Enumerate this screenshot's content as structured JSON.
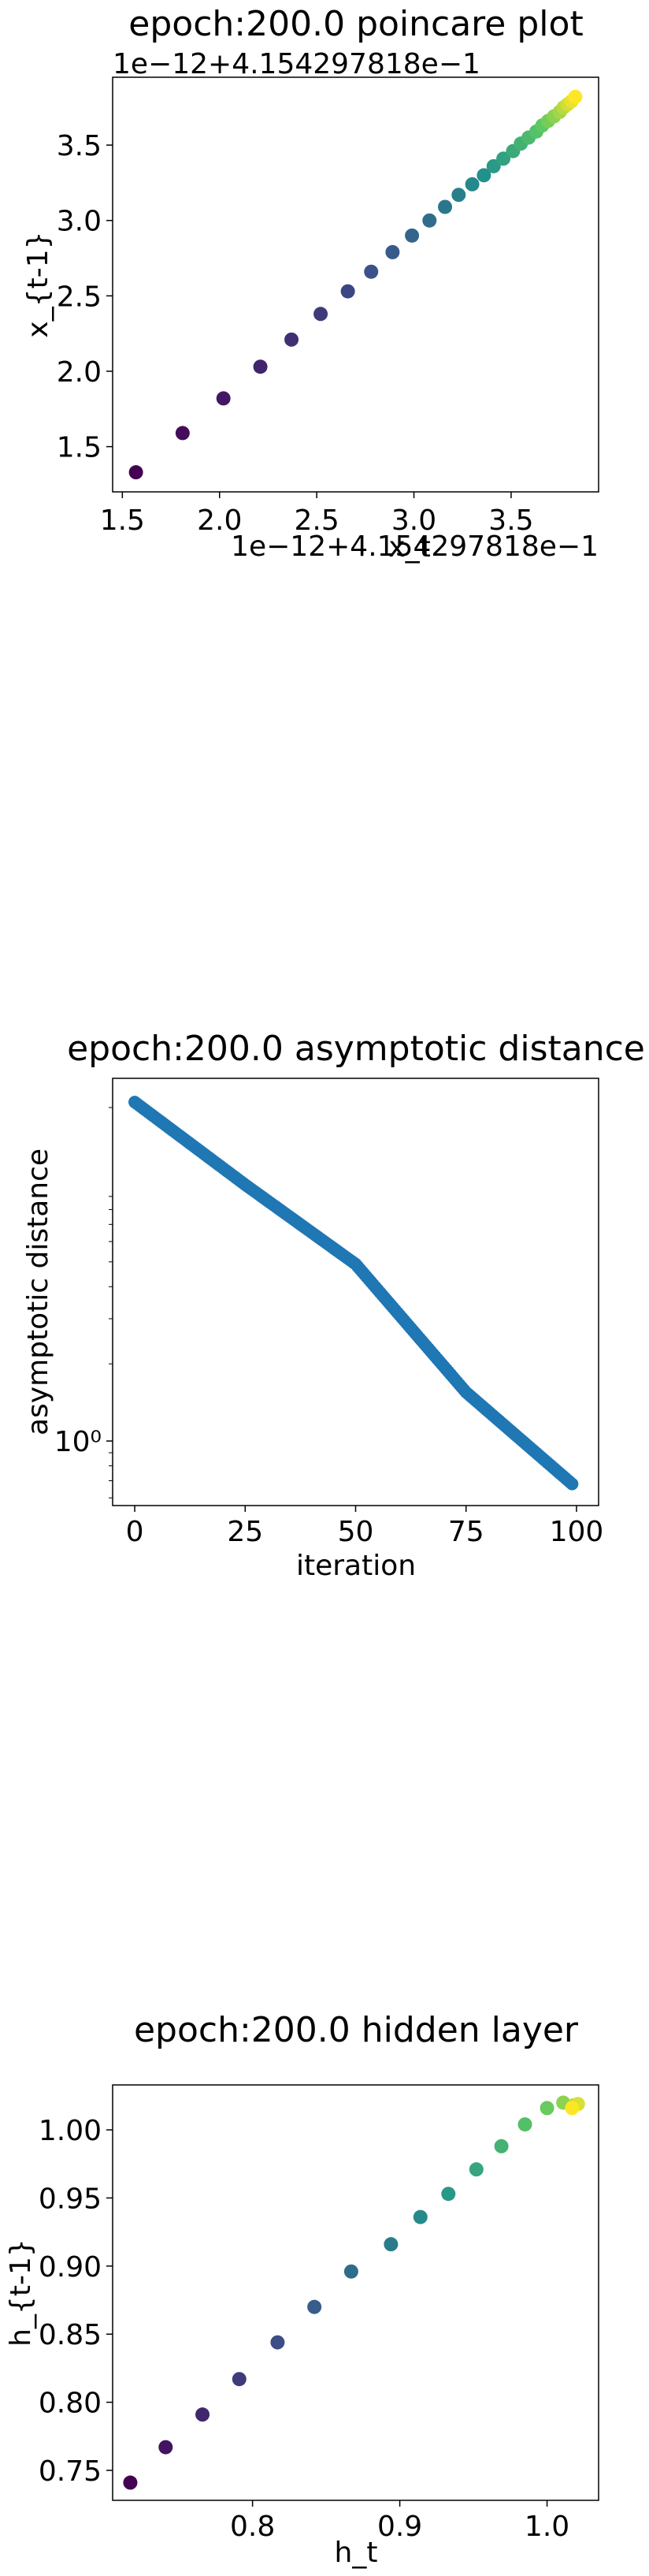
{
  "charts": [
    {
      "type": "scatter",
      "title": "epoch:200.0 poincare plot",
      "xlabel": "x_t",
      "ylabel": "x_{t-1}",
      "y_offset_text": "1e−12+4.154297818e−1",
      "x_offset_text": "1e−12+4.154297818e−1",
      "xlim": [
        1.45,
        3.95
      ],
      "ylim": [
        1.2,
        3.95
      ],
      "xticks": [
        "1.5",
        "2.0",
        "2.5",
        "3.0",
        "3.5"
      ],
      "yticks": [
        "1.5",
        "2.0",
        "2.5",
        "3.0",
        "3.5"
      ],
      "colormap": "viridis",
      "x": [
        1.57,
        1.81,
        2.02,
        2.21,
        2.37,
        2.52,
        2.66,
        2.78,
        2.89,
        2.99,
        3.08,
        3.16,
        3.23,
        3.3,
        3.36,
        3.41,
        3.46,
        3.51,
        3.55,
        3.59,
        3.63,
        3.66,
        3.69,
        3.72,
        3.75,
        3.77,
        3.79,
        3.81,
        3.83
      ],
      "y": [
        1.33,
        1.59,
        1.82,
        2.03,
        2.21,
        2.38,
        2.53,
        2.66,
        2.79,
        2.9,
        3.0,
        3.09,
        3.17,
        3.24,
        3.3,
        3.36,
        3.41,
        3.46,
        3.51,
        3.55,
        3.59,
        3.63,
        3.66,
        3.69,
        3.72,
        3.75,
        3.77,
        3.79,
        3.82
      ]
    },
    {
      "type": "scatter",
      "title": "epoch:200.0 asymptotic distance",
      "xlabel": "iteration",
      "ylabel": "asymptotic distance",
      "yscale": "log",
      "xlim": [
        -5,
        105
      ],
      "ylim": [
        0.56,
        26
      ],
      "xticks": [
        "0",
        "25",
        "50",
        "75",
        "100"
      ],
      "yticks": [
        "10⁰"
      ],
      "color": "#1f77b4",
      "x_range": [
        0,
        99
      ],
      "y_anchors": [
        [
          0,
          21.0
        ],
        [
          25,
          10.0
        ],
        [
          50,
          4.9
        ],
        [
          75,
          1.55
        ],
        [
          99,
          0.68
        ]
      ]
    },
    {
      "type": "scatter",
      "title": "epoch:200.0 hidden layer",
      "xlabel": "h_t",
      "ylabel": "h_{t-1}",
      "xlim": [
        0.705,
        1.035
      ],
      "ylim": [
        0.728,
        1.033
      ],
      "xticks": [
        "0.8",
        "0.9",
        "1.0"
      ],
      "yticks": [
        "0.75",
        "0.80",
        "0.85",
        "0.90",
        "0.95",
        "1.00"
      ],
      "colormap": "viridis",
      "x": [
        0.717,
        0.741,
        0.766,
        0.791,
        0.817,
        0.842,
        0.867,
        0.894,
        0.914,
        0.933,
        0.952,
        0.969,
        0.985,
        1.0,
        1.011,
        1.018,
        1.021,
        1.017
      ],
      "y": [
        0.741,
        0.767,
        0.791,
        0.817,
        0.844,
        0.87,
        0.896,
        0.916,
        0.936,
        0.953,
        0.971,
        0.988,
        1.004,
        1.016,
        1.02,
        1.018,
        1.019,
        1.016
      ]
    }
  ]
}
